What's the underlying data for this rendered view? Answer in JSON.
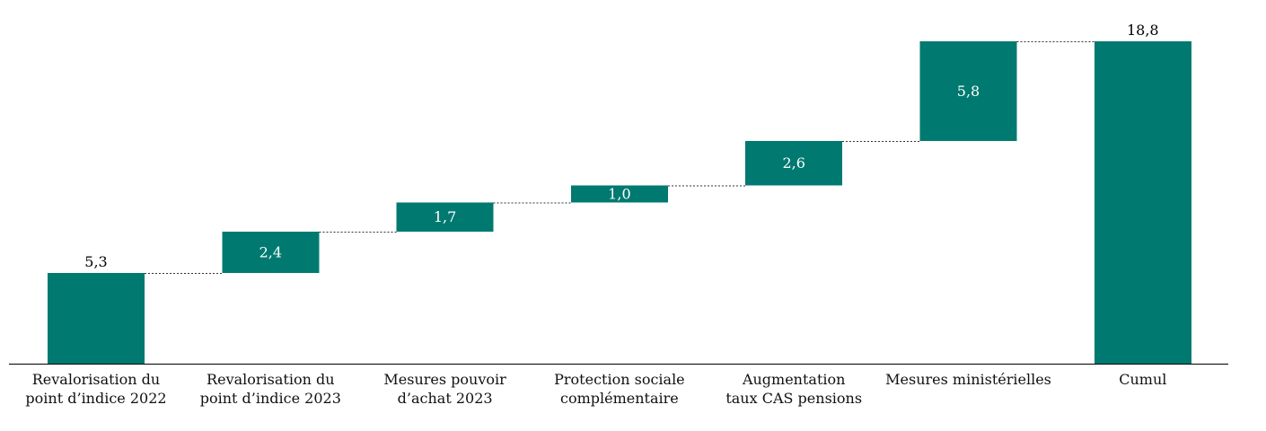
{
  "colors": {
    "bar": "#007a70",
    "label_inside": "#ffffff",
    "label_outside": "#000000"
  },
  "chart_data": {
    "type": "bar",
    "subtype": "waterfall",
    "categories": [
      [
        "Revalorisation du",
        "point d’indice 2022"
      ],
      [
        "Revalorisation du",
        "point d’indice 2023"
      ],
      [
        "Mesures pouvoir",
        "d’achat 2023"
      ],
      [
        "Protection sociale",
        "complémentaire"
      ],
      [
        "Augmentation",
        "taux CAS pensions"
      ],
      [
        "Mesures ministérielles"
      ],
      [
        "Cumul"
      ]
    ],
    "values": [
      5.3,
      2.4,
      1.7,
      1.0,
      2.6,
      5.8,
      18.8
    ],
    "value_labels": [
      "5,3",
      "2,4",
      "1,7",
      "1,0",
      "2,6",
      "5,8",
      "18,8"
    ],
    "total_index": 6,
    "ylim": [
      0,
      18.8
    ],
    "grid": false,
    "legend": "none"
  }
}
